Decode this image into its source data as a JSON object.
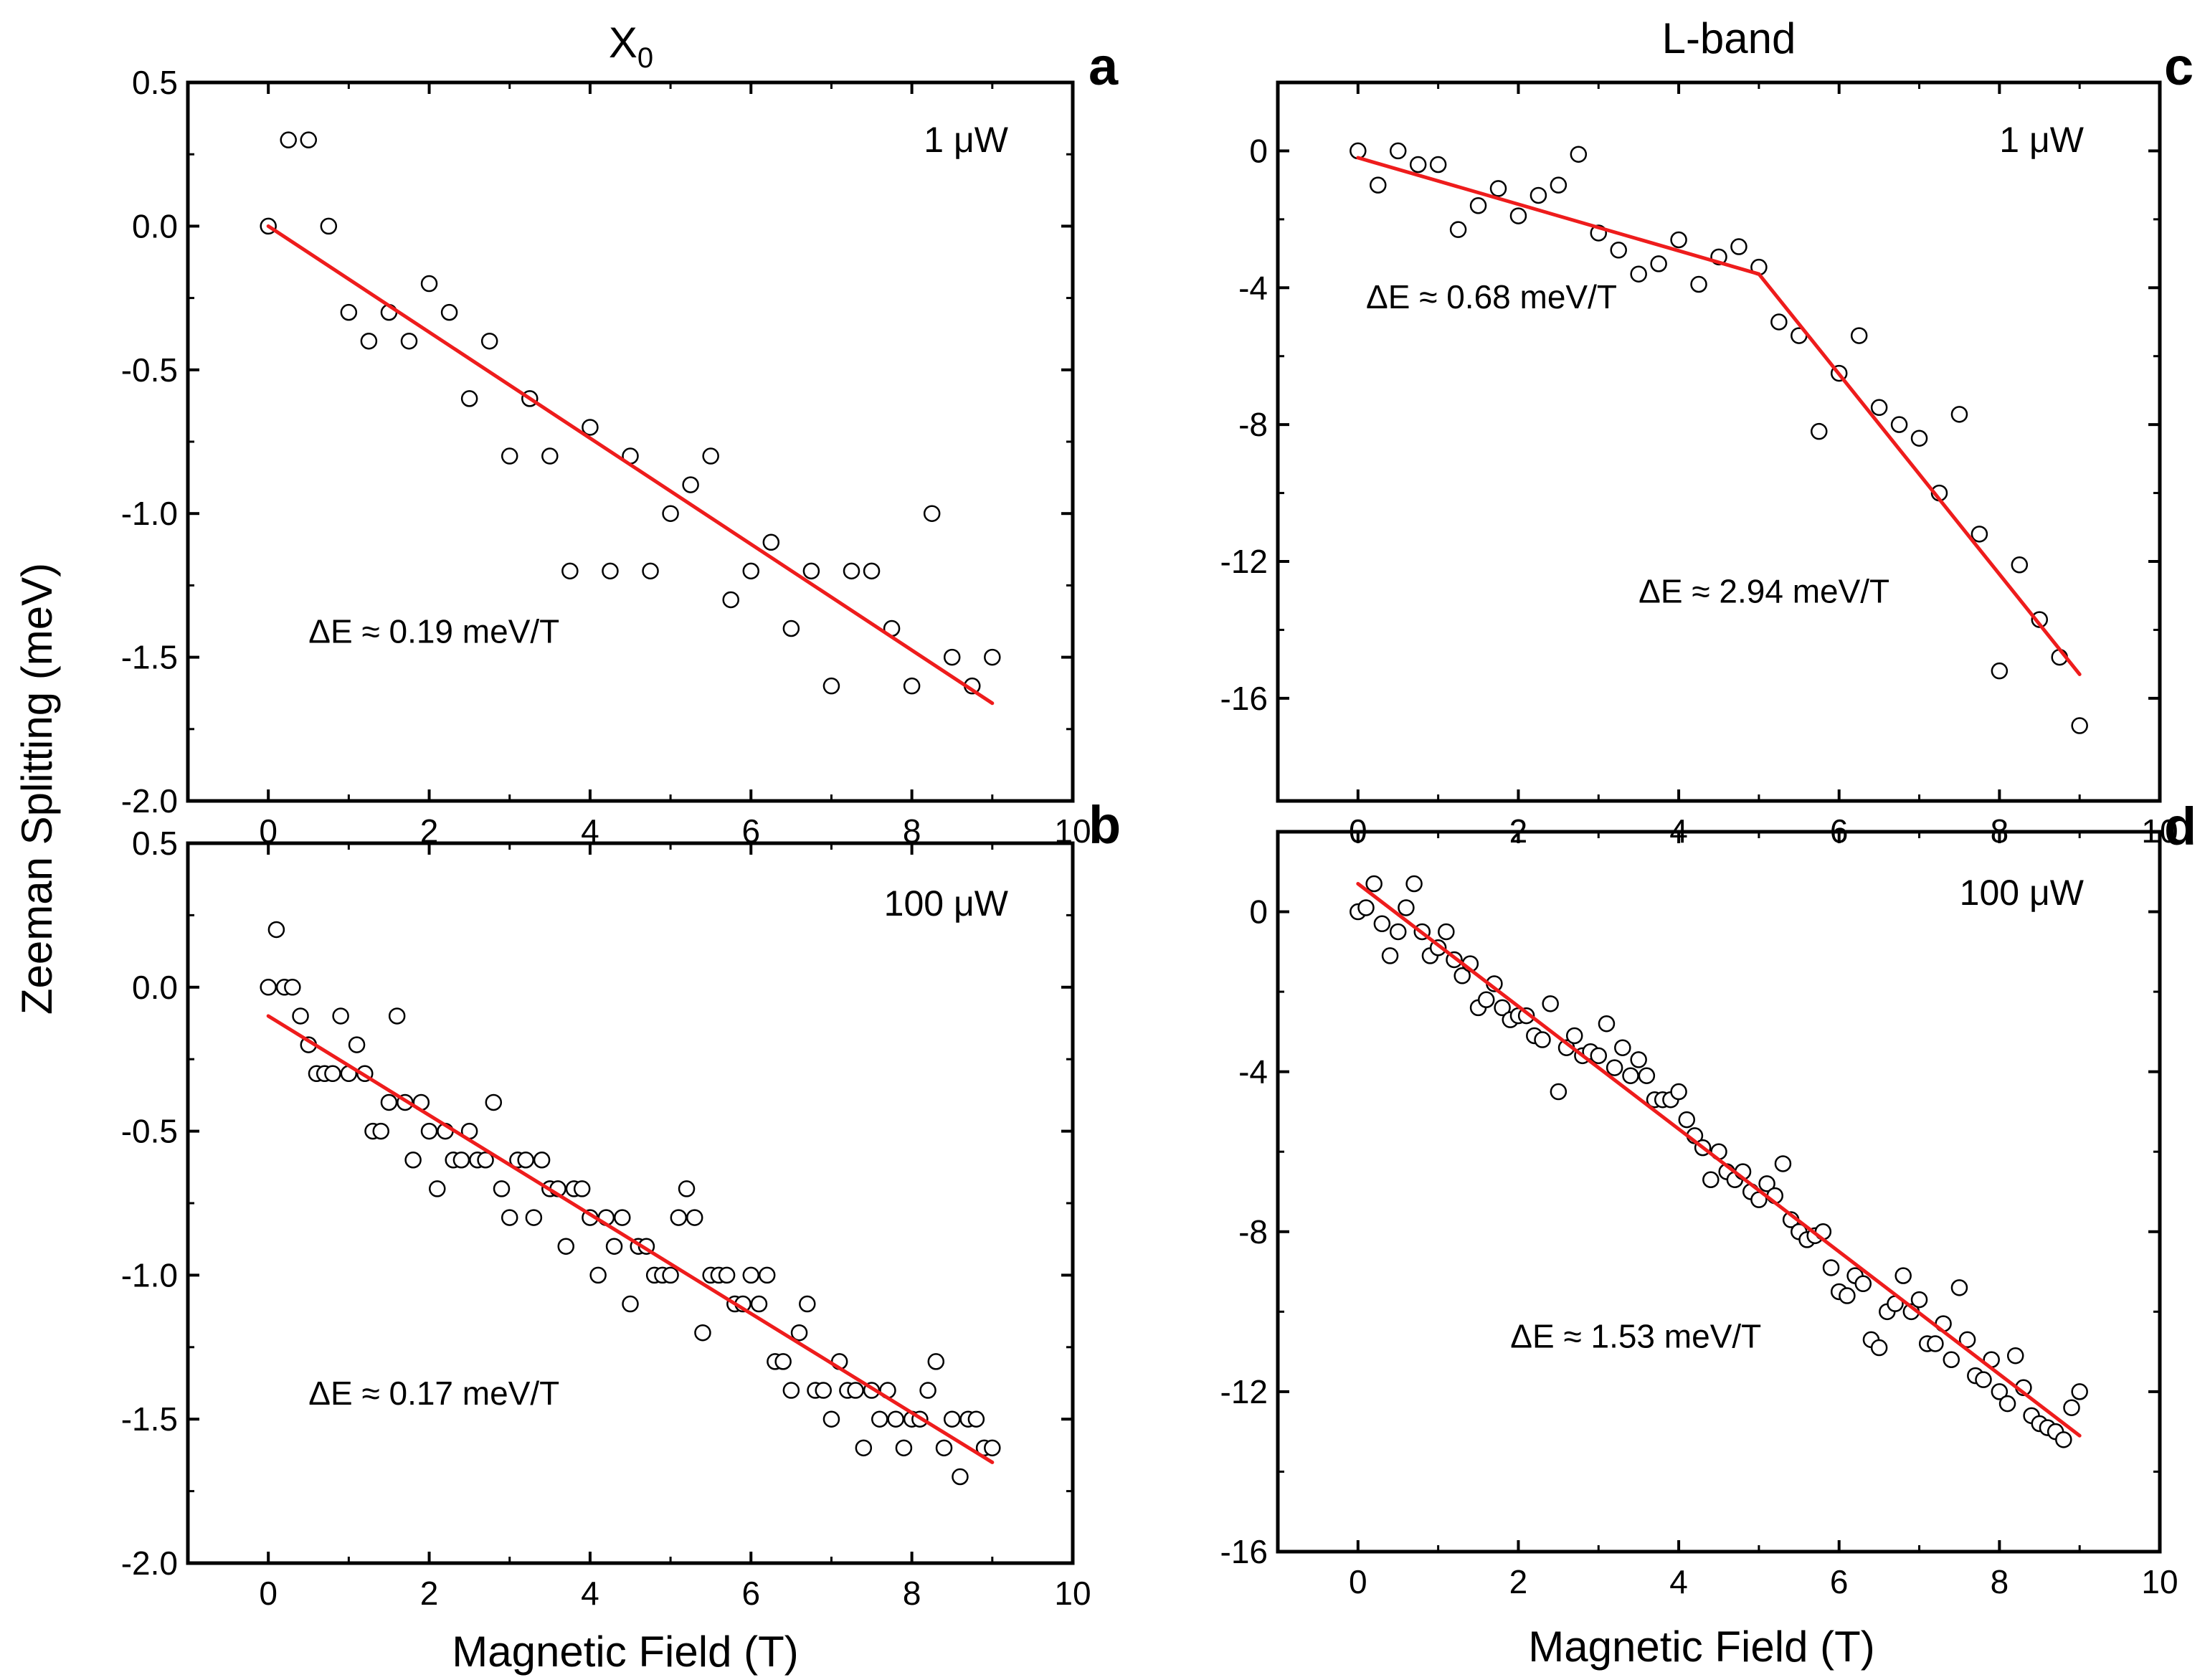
{
  "figure": {
    "y_axis_title": "Zeeman Splitting (meV)",
    "x_axis_title": "Magnetic Field (T)",
    "col_left_title": "X",
    "col_left_subscript": "0",
    "col_right_title": "L-band"
  },
  "colors": {
    "fit": "#ee1c1c",
    "marker": "#000000",
    "axis": "#000000"
  },
  "chart_data": [
    {
      "panel": "a",
      "type": "scatter",
      "power": "1 μW",
      "xlim": [
        -1,
        10
      ],
      "ylim": [
        -2.0,
        0.5
      ],
      "xticks": [
        0,
        2,
        4,
        6,
        8,
        10
      ],
      "xtick_labels": [
        "0",
        "2",
        "4",
        "6",
        "8",
        "10"
      ],
      "yticks": [
        0.5,
        0.0,
        -0.5,
        -1.0,
        -1.5,
        -2.0
      ],
      "ytick_labels": [
        "0.5",
        "0.0",
        "-0.5",
        "-1.0",
        "-1.5",
        "-2.0"
      ],
      "x": [
        0,
        0.25,
        0.5,
        0.75,
        1.0,
        1.25,
        1.5,
        1.75,
        2.0,
        2.25,
        2.5,
        2.75,
        3.0,
        3.25,
        3.5,
        3.75,
        4.0,
        4.25,
        4.5,
        4.75,
        5.0,
        5.25,
        5.5,
        5.75,
        6.0,
        6.25,
        6.5,
        6.75,
        7.0,
        7.25,
        7.5,
        7.75,
        8.0,
        8.25,
        8.5,
        8.75,
        9.0
      ],
      "y": [
        0.0,
        0.3,
        0.3,
        0.0,
        -0.3,
        -0.4,
        -0.3,
        -0.4,
        -0.2,
        -0.3,
        -0.6,
        -0.4,
        -0.8,
        -0.6,
        -0.8,
        -1.2,
        -0.7,
        -1.2,
        -0.8,
        -1.2,
        -1.0,
        -0.9,
        -0.8,
        -1.3,
        -1.2,
        -1.1,
        -1.4,
        -1.2,
        -1.6,
        -1.2,
        -1.2,
        -1.4,
        -1.6,
        -1.0,
        -1.5,
        -1.6,
        -1.5
      ],
      "fit_segments": [
        {
          "x": [
            0,
            9
          ],
          "y": [
            0.0,
            -1.66
          ]
        }
      ],
      "annotations": [
        {
          "text": "ΔE ≈ 0.19 meV/T",
          "at": [
            0.5,
            -1.45
          ]
        }
      ]
    },
    {
      "panel": "b",
      "type": "scatter",
      "power": "100 μW",
      "xlim": [
        -1,
        10
      ],
      "ylim": [
        -2.0,
        0.5
      ],
      "xticks": [
        0,
        2,
        4,
        6,
        8,
        10
      ],
      "xtick_labels": [
        "0",
        "2",
        "4",
        "6",
        "8",
        "10"
      ],
      "yticks": [
        0.5,
        0.0,
        -0.5,
        -1.0,
        -1.5,
        -2.0
      ],
      "ytick_labels": [
        "0.5",
        "0.0",
        "-0.5",
        "-1.0",
        "-1.5",
        "-2.0"
      ],
      "x": [
        0,
        0.1,
        0.2,
        0.3,
        0.4,
        0.5,
        0.6,
        0.7,
        0.8,
        0.9,
        1.0,
        1.1,
        1.2,
        1.3,
        1.4,
        1.5,
        1.6,
        1.7,
        1.8,
        1.9,
        2.0,
        2.1,
        2.2,
        2.3,
        2.4,
        2.5,
        2.6,
        2.7,
        2.8,
        2.9,
        3.0,
        3.1,
        3.2,
        3.3,
        3.4,
        3.5,
        3.6,
        3.7,
        3.8,
        3.9,
        4.0,
        4.1,
        4.2,
        4.3,
        4.4,
        4.5,
        4.6,
        4.7,
        4.8,
        4.9,
        5.0,
        5.1,
        5.2,
        5.3,
        5.4,
        5.5,
        5.6,
        5.7,
        5.8,
        5.9,
        6.0,
        6.1,
        6.2,
        6.3,
        6.4,
        6.5,
        6.6,
        6.7,
        6.8,
        6.9,
        7.0,
        7.1,
        7.2,
        7.3,
        7.4,
        7.5,
        7.6,
        7.7,
        7.8,
        7.9,
        8.0,
        8.1,
        8.2,
        8.3,
        8.4,
        8.5,
        8.6,
        8.7,
        8.8,
        8.9,
        9.0
      ],
      "y": [
        0.0,
        0.2,
        0.0,
        0.0,
        -0.1,
        -0.2,
        -0.3,
        -0.3,
        -0.3,
        -0.1,
        -0.3,
        -0.2,
        -0.3,
        -0.5,
        -0.5,
        -0.4,
        -0.1,
        -0.4,
        -0.6,
        -0.4,
        -0.5,
        -0.7,
        -0.5,
        -0.6,
        -0.6,
        -0.5,
        -0.6,
        -0.6,
        -0.4,
        -0.7,
        -0.8,
        -0.6,
        -0.6,
        -0.8,
        -0.6,
        -0.7,
        -0.7,
        -0.9,
        -0.7,
        -0.7,
        -0.8,
        -1.0,
        -0.8,
        -0.9,
        -0.8,
        -1.1,
        -0.9,
        -0.9,
        -1.0,
        -1.0,
        -1.0,
        -0.8,
        -0.7,
        -0.8,
        -1.2,
        -1.0,
        -1.0,
        -1.0,
        -1.1,
        -1.1,
        -1.0,
        -1.1,
        -1.0,
        -1.3,
        -1.3,
        -1.4,
        -1.2,
        -1.1,
        -1.4,
        -1.4,
        -1.5,
        -1.3,
        -1.4,
        -1.4,
        -1.6,
        -1.4,
        -1.5,
        -1.4,
        -1.5,
        -1.6,
        -1.5,
        -1.5,
        -1.4,
        -1.3,
        -1.6,
        -1.5,
        -1.7,
        -1.5,
        -1.5,
        -1.6,
        -1.6
      ],
      "fit_segments": [
        {
          "x": [
            0,
            9
          ],
          "y": [
            -0.1,
            -1.65
          ]
        }
      ],
      "annotations": [
        {
          "text": "ΔE ≈ 0.17 meV/T",
          "at": [
            0.5,
            -1.45
          ]
        }
      ]
    },
    {
      "panel": "c",
      "type": "scatter",
      "power": "1 μW",
      "xlim": [
        -1,
        10
      ],
      "ylim": [
        -19,
        2
      ],
      "xticks": [
        0,
        2,
        4,
        6,
        8,
        10
      ],
      "xtick_labels": [
        "0",
        "2",
        "4",
        "6",
        "8",
        "10"
      ],
      "yticks": [
        0,
        -4,
        -8,
        -12,
        -16
      ],
      "ytick_labels": [
        "0",
        "-4",
        "-8",
        "-12",
        "-16"
      ],
      "x": [
        0,
        0.25,
        0.5,
        0.75,
        1.0,
        1.25,
        1.5,
        1.75,
        2.0,
        2.25,
        2.5,
        2.75,
        3.0,
        3.25,
        3.5,
        3.75,
        4.0,
        4.25,
        4.5,
        4.75,
        5.0,
        5.25,
        5.5,
        5.75,
        6.0,
        6.25,
        6.5,
        6.75,
        7.0,
        7.25,
        7.5,
        7.75,
        8.0,
        8.25,
        8.5,
        8.75,
        9.0
      ],
      "y": [
        0.0,
        -1.0,
        0.0,
        -0.4,
        -0.4,
        -2.3,
        -1.6,
        -1.1,
        -1.9,
        -1.3,
        -1.0,
        -0.1,
        -2.4,
        -2.9,
        -3.6,
        -3.3,
        -2.6,
        -3.9,
        -3.1,
        -2.8,
        -3.4,
        -5.0,
        -5.4,
        -8.2,
        -6.5,
        -5.4,
        -7.5,
        -8.0,
        -8.4,
        -10.0,
        -7.7,
        -11.2,
        -15.2,
        -12.1,
        -13.7,
        -14.8,
        -16.8
      ],
      "fit_segments": [
        {
          "x": [
            0,
            5
          ],
          "y": [
            -0.2,
            -3.6
          ]
        },
        {
          "x": [
            5,
            9
          ],
          "y": [
            -3.6,
            -15.3
          ]
        }
      ],
      "annotations": [
        {
          "text": "ΔE ≈ 0.68 meV/T",
          "at": [
            0.1,
            -4.6
          ]
        },
        {
          "text": "ΔE ≈ 2.94 meV/T",
          "at": [
            3.5,
            -13.2
          ]
        }
      ]
    },
    {
      "panel": "d",
      "type": "scatter",
      "power": "100 μW",
      "xlim": [
        -1,
        10
      ],
      "ylim": [
        -16,
        2
      ],
      "xticks": [
        0,
        2,
        4,
        6,
        8,
        10
      ],
      "xtick_labels": [
        "0",
        "2",
        "4",
        "6",
        "8",
        "10"
      ],
      "yticks": [
        0,
        -4,
        -8,
        -12,
        -16
      ],
      "ytick_labels": [
        "0",
        "-4",
        "-8",
        "-12",
        "-16"
      ],
      "x": [
        0,
        0.1,
        0.2,
        0.3,
        0.4,
        0.5,
        0.6,
        0.7,
        0.8,
        0.9,
        1.0,
        1.1,
        1.2,
        1.3,
        1.4,
        1.5,
        1.6,
        1.7,
        1.8,
        1.9,
        2.0,
        2.1,
        2.2,
        2.3,
        2.4,
        2.5,
        2.6,
        2.7,
        2.8,
        2.9,
        3.0,
        3.1,
        3.2,
        3.3,
        3.4,
        3.5,
        3.6,
        3.7,
        3.8,
        3.9,
        4.0,
        4.1,
        4.2,
        4.3,
        4.4,
        4.5,
        4.6,
        4.7,
        4.8,
        4.9,
        5.0,
        5.1,
        5.2,
        5.3,
        5.4,
        5.5,
        5.6,
        5.7,
        5.8,
        5.9,
        6.0,
        6.1,
        6.2,
        6.3,
        6.4,
        6.5,
        6.6,
        6.7,
        6.8,
        6.9,
        7.0,
        7.1,
        7.2,
        7.3,
        7.4,
        7.5,
        7.6,
        7.7,
        7.8,
        7.9,
        8.0,
        8.1,
        8.2,
        8.3,
        8.4,
        8.5,
        8.6,
        8.7,
        8.8,
        8.9,
        9.0
      ],
      "y": [
        0.0,
        0.1,
        0.7,
        -0.3,
        -1.1,
        -0.5,
        0.1,
        0.7,
        -0.5,
        -1.1,
        -0.9,
        -0.5,
        -1.2,
        -1.6,
        -1.3,
        -2.4,
        -2.2,
        -1.8,
        -2.4,
        -2.7,
        -2.6,
        -2.6,
        -3.1,
        -3.2,
        -2.3,
        -4.5,
        -3.4,
        -3.1,
        -3.6,
        -3.5,
        -3.6,
        -2.8,
        -3.9,
        -3.4,
        -4.1,
        -3.7,
        -4.1,
        -4.7,
        -4.7,
        -4.7,
        -4.5,
        -5.2,
        -5.6,
        -5.9,
        -6.7,
        -6.0,
        -6.5,
        -6.7,
        -6.5,
        -7.0,
        -7.2,
        -6.8,
        -7.1,
        -6.3,
        -7.7,
        -8.0,
        -8.2,
        -8.1,
        -8.0,
        -8.9,
        -9.5,
        -9.6,
        -9.1,
        -9.3,
        -10.7,
        -10.9,
        -10.0,
        -9.8,
        -9.1,
        -10.0,
        -9.7,
        -10.8,
        -10.8,
        -10.3,
        -11.2,
        -9.4,
        -10.7,
        -11.6,
        -11.7,
        -11.2,
        -12.0,
        -12.3,
        -11.1,
        -11.9,
        -12.6,
        -12.8,
        -12.9,
        -13.0,
        -13.2,
        -12.4,
        -12.0
      ],
      "fit_segments": [
        {
          "x": [
            0,
            9
          ],
          "y": [
            0.7,
            -13.1
          ]
        }
      ],
      "annotations": [
        {
          "text": "ΔE ≈ 1.53 meV/T",
          "at": [
            1.9,
            -10.9
          ]
        }
      ]
    }
  ]
}
